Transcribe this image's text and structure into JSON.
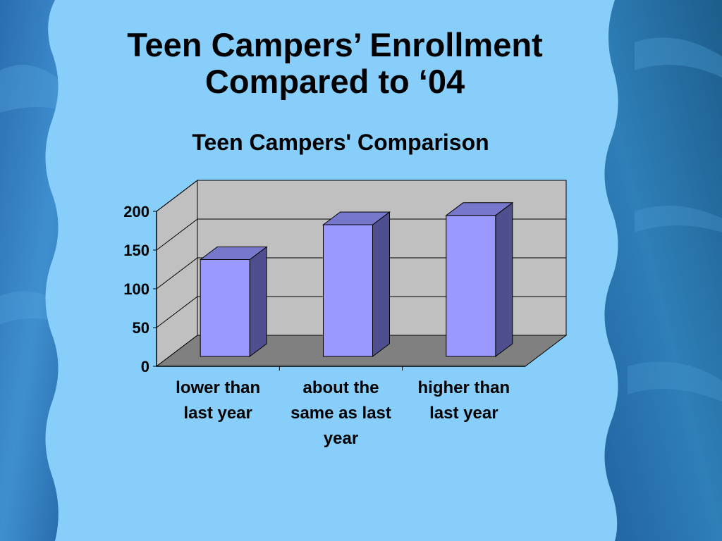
{
  "slide": {
    "title_line1": "Teen Campers’ Enrollment",
    "title_line2": "Compared to ‘04"
  },
  "colors": {
    "panel": "#87CEFA",
    "water_dark": "#1f5f9e",
    "water_light": "#3f8fd0",
    "bar_front": "#9999FF",
    "bar_side": "#4F4F8F",
    "bar_top": "#7777CC",
    "wall": "#C0C0C0",
    "floor": "#808080"
  },
  "chart_data": {
    "type": "bar",
    "title": "Teen Campers' Comparison",
    "categories": [
      "lower than last year",
      "about the same as last year",
      "higher than last year"
    ],
    "category_lines": [
      [
        "lower than",
        "last year"
      ],
      [
        "about the",
        "same as last",
        "year"
      ],
      [
        "higher than",
        "last year"
      ]
    ],
    "values": [
      125,
      170,
      182
    ],
    "ylim": [
      0,
      200
    ],
    "yticks": [
      0,
      50,
      100,
      150,
      200
    ],
    "xlabel": "",
    "ylabel": "",
    "grid": true,
    "legend": "none",
    "style": "3d-column"
  }
}
